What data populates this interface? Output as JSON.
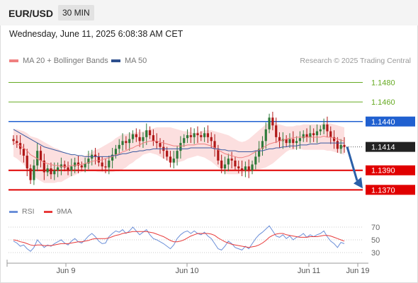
{
  "header": {
    "symbol": "EUR/USD",
    "timeframe": "30 MIN"
  },
  "date_line": "Wednesday, June 11, 2025 6:08:38 AM CET",
  "legend": {
    "ma20": "MA 20 + Bollinger Bands",
    "ma50": "MA 50"
  },
  "credit": "Research © 2025 Trading Central",
  "rsi_legend": {
    "rsi": "RSI",
    "ma9": "9MA"
  },
  "colors": {
    "resistance": "#2060d0",
    "support": "#e00000",
    "target": "#66aa22",
    "ma20": "#f08080",
    "ma50": "#3a5aa0",
    "band": "#fbd4d4",
    "up": "#2f7a3a",
    "down": "#b01818",
    "rsi": "#6b8fd8",
    "rsi_ma": "#e83a3a"
  },
  "chart_data": [
    {
      "type": "candlestick",
      "symbol": "EUR/USD",
      "interval": "30 MIN",
      "x_ticks": [
        "Jun 9",
        "Jun 10",
        "Jun 11",
        "Jun 19"
      ],
      "ylim": [
        1.1363,
        1.1492
      ],
      "levels": [
        {
          "label": "1.1480",
          "value": 1.148,
          "kind": "target"
        },
        {
          "label": "1.1460",
          "value": 1.146,
          "kind": "target"
        },
        {
          "label": "1.1440",
          "value": 1.144,
          "kind": "resistance"
        },
        {
          "label": "1.1414",
          "value": 1.1414,
          "kind": "current"
        },
        {
          "label": "1.1390",
          "value": 1.139,
          "kind": "support"
        },
        {
          "label": "1.1370",
          "value": 1.137,
          "kind": "support"
        }
      ],
      "closes": [
        1.142,
        1.1418,
        1.1412,
        1.1405,
        1.1392,
        1.138,
        1.1395,
        1.141,
        1.14,
        1.1388,
        1.1392,
        1.1386,
        1.139,
        1.1393,
        1.1396,
        1.1393,
        1.139,
        1.1394,
        1.1398,
        1.1395,
        1.1393,
        1.1397,
        1.1402,
        1.1406,
        1.1404,
        1.1398,
        1.1394,
        1.1393,
        1.14,
        1.1406,
        1.1412,
        1.1416,
        1.142,
        1.1418,
        1.1422,
        1.1427,
        1.1424,
        1.142,
        1.1424,
        1.1431,
        1.1426,
        1.142,
        1.1418,
        1.1414,
        1.141,
        1.1404,
        1.1398,
        1.1402,
        1.141,
        1.1418,
        1.1423,
        1.1426,
        1.1424,
        1.1428,
        1.1426,
        1.1424,
        1.1428,
        1.1424,
        1.142,
        1.1412,
        1.14,
        1.1392,
        1.1396,
        1.1402,
        1.14,
        1.1394,
        1.1392,
        1.139,
        1.1394,
        1.139,
        1.1396,
        1.1404,
        1.1412,
        1.142,
        1.1432,
        1.1444,
        1.1436,
        1.1424,
        1.142,
        1.1422,
        1.1418,
        1.1422,
        1.1418,
        1.142,
        1.1423,
        1.1427,
        1.1424,
        1.1428,
        1.1426,
        1.143,
        1.1432,
        1.1437,
        1.143,
        1.1424,
        1.142,
        1.1412,
        1.1416,
        1.1414
      ],
      "ma20": [
        1.1418,
        1.1417,
        1.1415,
        1.1413,
        1.141,
        1.1406,
        1.1404,
        1.1402,
        1.14,
        1.1398,
        1.1397,
        1.1396,
        1.1395,
        1.1395,
        1.1394,
        1.1394,
        1.1394,
        1.1395,
        1.1395,
        1.1396,
        1.1396,
        1.1397,
        1.1398,
        1.1399,
        1.14,
        1.14,
        1.1401,
        1.1402,
        1.1403,
        1.1404,
        1.1406,
        1.1407,
        1.1409,
        1.141,
        1.1412,
        1.1413,
        1.1415,
        1.1416,
        1.1418,
        1.1419,
        1.142,
        1.142,
        1.142,
        1.1419,
        1.1418,
        1.1417,
        1.1416,
        1.1415,
        1.1415,
        1.1415,
        1.1415,
        1.1416,
        1.1416,
        1.1416,
        1.1417,
        1.1417,
        1.1417,
        1.1416,
        1.1415,
        1.1413,
        1.1411,
        1.1409,
        1.1407,
        1.1406,
        1.1405,
        1.1404,
        1.1403,
        1.1403,
        1.1404,
        1.1405,
        1.1407,
        1.1409,
        1.1411,
        1.1413,
        1.1415,
        1.1417,
        1.1418,
        1.1419,
        1.142,
        1.1421,
        1.1422,
        1.1423,
        1.1423,
        1.1424,
        1.1424,
        1.1424,
        1.1424,
        1.1424,
        1.1424,
        1.1424,
        1.1424,
        1.1425,
        1.1424,
        1.1424,
        1.1423,
        1.1422,
        1.1421,
        1.142
      ],
      "ma50": [
        1.1432,
        1.143,
        1.1428,
        1.1426,
        1.1424,
        1.1422,
        1.142,
        1.1418,
        1.1416,
        1.1414,
        1.1413,
        1.1412,
        1.1411,
        1.141,
        1.1409,
        1.1408,
        1.1407,
        1.1406,
        1.1406,
        1.1405,
        1.1405,
        1.1404,
        1.1404,
        1.1404,
        1.1404,
        1.1404,
        1.1404,
        1.1404,
        1.1404,
        1.1405,
        1.1405,
        1.1406,
        1.1407,
        1.1407,
        1.1408,
        1.1409,
        1.1409,
        1.141,
        1.141,
        1.1411,
        1.1411,
        1.1412,
        1.1412,
        1.1412,
        1.1412,
        1.1412,
        1.1412,
        1.1412,
        1.1412,
        1.1412,
        1.1412,
        1.1412,
        1.1413,
        1.1413,
        1.1413,
        1.1413,
        1.1413,
        1.1413,
        1.1413,
        1.1412,
        1.1412,
        1.1411,
        1.1411,
        1.141,
        1.141,
        1.141,
        1.1409,
        1.1409,
        1.1409,
        1.1409,
        1.1409,
        1.141,
        1.141,
        1.141,
        1.1411,
        1.1412,
        1.1412,
        1.1413,
        1.1413,
        1.1414,
        1.1414,
        1.1415,
        1.1415,
        1.1415,
        1.1416,
        1.1416,
        1.1416,
        1.1417,
        1.1417,
        1.1417,
        1.1418,
        1.1418,
        1.1418,
        1.1418,
        1.1418,
        1.1418,
        1.1418,
        1.1418
      ],
      "band_width": [
        0.0014,
        0.0015,
        0.0016,
        0.0017,
        0.0018,
        0.0019,
        0.002,
        0.0021,
        0.0021,
        0.0021,
        0.002,
        0.0019,
        0.0018,
        0.0017,
        0.0016,
        0.0014,
        0.0012,
        0.0011,
        0.001,
        0.0009,
        0.0008,
        0.0008,
        0.0009,
        0.001,
        0.0011,
        0.0012,
        0.0013,
        0.0014,
        0.0015,
        0.0016,
        0.0017,
        0.0018,
        0.0018,
        0.0017,
        0.0016,
        0.0015,
        0.0014,
        0.0013,
        0.0012,
        0.0012,
        0.0012,
        0.0013,
        0.0014,
        0.0015,
        0.0016,
        0.0017,
        0.0018,
        0.0018,
        0.0017,
        0.0016,
        0.0015,
        0.0014,
        0.0013,
        0.0012,
        0.0012,
        0.0013,
        0.0014,
        0.0015,
        0.0016,
        0.0017,
        0.0018,
        0.0019,
        0.002,
        0.002,
        0.0019,
        0.0018,
        0.0017,
        0.0016,
        0.0016,
        0.0017,
        0.0018,
        0.0019,
        0.002,
        0.0021,
        0.0022,
        0.0022,
        0.0021,
        0.0019,
        0.0017,
        0.0015,
        0.0013,
        0.0012,
        0.0012,
        0.0012,
        0.0012,
        0.0013,
        0.0013,
        0.0013,
        0.0013,
        0.0013,
        0.0013,
        0.0014,
        0.0014,
        0.0014,
        0.0014,
        0.0014,
        0.0014,
        0.0014
      ],
      "projection": {
        "from": 1.1414,
        "to": 1.137
      }
    },
    {
      "type": "line",
      "name": "RSI panel",
      "series": [
        {
          "name": "RSI",
          "values": [
            48,
            45,
            40,
            42,
            36,
            32,
            38,
            50,
            44,
            38,
            42,
            40,
            44,
            47,
            50,
            45,
            42,
            48,
            52,
            47,
            45,
            50,
            56,
            60,
            55,
            48,
            44,
            45,
            55,
            60,
            64,
            62,
            66,
            60,
            64,
            70,
            64,
            58,
            62,
            66,
            58,
            52,
            50,
            47,
            44,
            40,
            36,
            42,
            52,
            58,
            62,
            64,
            60,
            64,
            60,
            58,
            62,
            56,
            52,
            44,
            36,
            34,
            40,
            48,
            44,
            38,
            36,
            34,
            40,
            36,
            44,
            52,
            58,
            62,
            67,
            72,
            64,
            56,
            54,
            58,
            52,
            56,
            50,
            54,
            56,
            60,
            54,
            58,
            55,
            58,
            60,
            64,
            55,
            48,
            44,
            38,
            46,
            44
          ]
        },
        {
          "name": "9MA",
          "values": [
            50,
            49,
            47,
            46,
            44,
            42,
            41,
            42,
            42,
            41,
            41,
            41,
            42,
            43,
            44,
            44,
            44,
            45,
            46,
            47,
            47,
            48,
            49,
            51,
            52,
            52,
            52,
            52,
            53,
            55,
            57,
            58,
            60,
            61,
            62,
            63,
            63,
            63,
            63,
            63,
            62,
            61,
            59,
            57,
            55,
            52,
            49,
            47,
            47,
            48,
            50,
            53,
            56,
            58,
            60,
            60,
            60,
            60,
            59,
            57,
            53,
            50,
            47,
            45,
            43,
            42,
            41,
            40,
            39,
            38,
            39,
            40,
            42,
            45,
            49,
            54,
            57,
            59,
            60,
            60,
            58,
            57,
            56,
            55,
            54,
            54,
            54,
            55,
            55,
            55,
            56,
            57,
            57,
            56,
            54,
            52,
            50,
            48
          ]
        }
      ],
      "y_ticks": [
        "70",
        "50",
        "30"
      ],
      "ylim": [
        20,
        80
      ]
    }
  ]
}
